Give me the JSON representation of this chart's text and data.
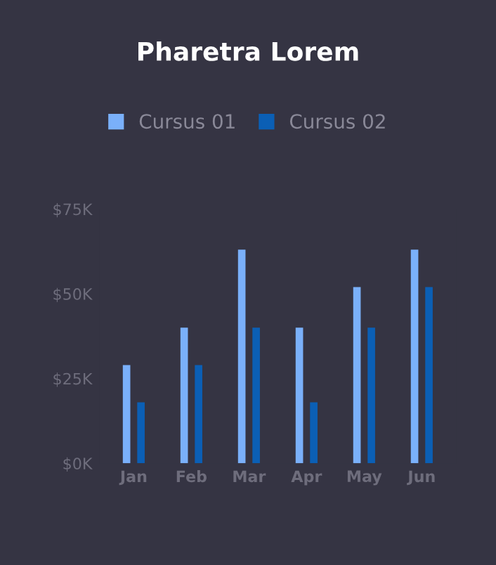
{
  "chart_data": {
    "type": "bar",
    "title": "Pharetra Lorem",
    "categories": [
      "Jan",
      "Feb",
      "Mar",
      "Apr",
      "May",
      "Jun"
    ],
    "series": [
      {
        "name": "Cursus 01",
        "color": "#7ab0fa",
        "values": [
          29,
          40,
          63,
          40,
          52,
          63
        ]
      },
      {
        "name": "Cursus 02",
        "color": "#0b5fb5",
        "values": [
          18,
          29,
          40,
          18,
          40,
          52
        ]
      }
    ],
    "ylim": [
      0,
      75
    ],
    "yticks": [
      {
        "value": 0,
        "label": "$0K"
      },
      {
        "value": 25,
        "label": "$25K"
      },
      {
        "value": 50,
        "label": "$50K"
      },
      {
        "value": 75,
        "label": "$75K"
      }
    ],
    "grid": false,
    "legend": "top"
  }
}
